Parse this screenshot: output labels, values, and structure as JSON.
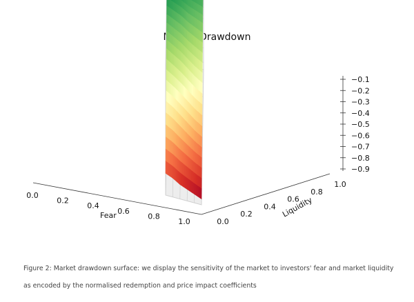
{
  "chart_data": {
    "type": "surface",
    "title": "Market Drawdown",
    "xlabel": "Fear",
    "ylabel": "Liquidity",
    "zlabel": "",
    "x_ticks": [
      "0.0",
      "0.2",
      "0.4",
      "0.6",
      "0.8",
      "1.0"
    ],
    "y_ticks": [
      "0.0",
      "0.2",
      "0.4",
      "0.6",
      "0.8",
      "1.0"
    ],
    "z_ticks": [
      "-0.1",
      "-0.2",
      "-0.3",
      "-0.4",
      "-0.5",
      "-0.6",
      "-0.7",
      "-0.8",
      "-0.9"
    ],
    "xlim": [
      0,
      1
    ],
    "ylim": [
      0,
      1
    ],
    "zlim": [
      -0.95,
      -0.05
    ],
    "colormap": "RdYlGn",
    "grid": true,
    "x": [
      0.0,
      0.2,
      0.4,
      0.6,
      0.8,
      1.0
    ],
    "y": [
      0.0,
      0.2,
      0.4,
      0.6,
      0.8,
      1.0
    ],
    "z": [
      [
        -0.8,
        -0.52,
        -0.3,
        -0.16,
        -0.1,
        -0.08
      ],
      [
        -0.82,
        -0.55,
        -0.33,
        -0.18,
        -0.11,
        -0.09
      ],
      [
        -0.85,
        -0.59,
        -0.36,
        -0.2,
        -0.12,
        -0.09
      ],
      [
        -0.87,
        -0.63,
        -0.4,
        -0.23,
        -0.13,
        -0.09
      ],
      [
        -0.89,
        -0.67,
        -0.44,
        -0.25,
        -0.14,
        -0.1
      ],
      [
        -0.91,
        -0.7,
        -0.47,
        -0.27,
        -0.15,
        -0.1
      ]
    ]
  },
  "caption": "Figure 2: Market drawdown surface: we display the sensitivity of the market to investors' fear and market  liquidity as encoded by the normalised redemption and price impact coefficients"
}
